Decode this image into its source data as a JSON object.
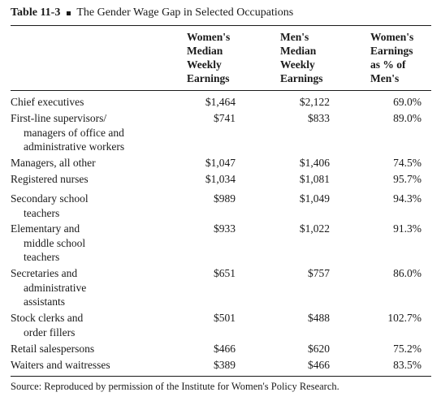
{
  "table": {
    "number": "Table 11-3",
    "title": "The Gender Wage Gap in Selected Occupations",
    "headers": {
      "women": [
        "Women's",
        "Median",
        "Weekly",
        "Earnings"
      ],
      "men": [
        "Men's",
        "Median",
        "Weekly",
        "Earnings"
      ],
      "percent": [
        "Women's",
        "Earnings",
        "as % of",
        "Men's"
      ]
    },
    "rows": [
      {
        "label": [
          "Chief executives"
        ],
        "women": "$1,464",
        "men": "$2,122",
        "percent": "69.0%"
      },
      {
        "label": [
          "First-line supervisors/",
          "managers of office and",
          "administrative workers"
        ],
        "women": "$741",
        "men": "$833",
        "percent": "89.0%"
      },
      {
        "label": [
          "Managers, all other"
        ],
        "women": "$1,047",
        "men": "$1,406",
        "percent": "74.5%"
      },
      {
        "label": [
          "Registered nurses"
        ],
        "women": "$1,034",
        "men": "$1,081",
        "percent": "95.7%"
      },
      {
        "label": [
          "Secondary school",
          "teachers"
        ],
        "women": "$989",
        "men": "$1,049",
        "percent": "94.3%"
      },
      {
        "label": [
          "Elementary and",
          "middle school",
          "teachers"
        ],
        "women": "$933",
        "men": "$1,022",
        "percent": "91.3%"
      },
      {
        "label": [
          "Secretaries and",
          "administrative",
          "assistants"
        ],
        "women": "$651",
        "men": "$757",
        "percent": "86.0%"
      },
      {
        "label": [
          "Stock clerks and",
          "order fillers"
        ],
        "women": "$501",
        "men": "$488",
        "percent": "102.7%"
      },
      {
        "label": [
          "Retail salespersons"
        ],
        "women": "$466",
        "men": "$620",
        "percent": "75.2%"
      },
      {
        "label": [
          "Waiters and waitresses"
        ],
        "women": "$389",
        "men": "$466",
        "percent": "83.5%"
      }
    ],
    "source": "Source: Reproduced by permission of the Institute for Women's Policy Research."
  }
}
